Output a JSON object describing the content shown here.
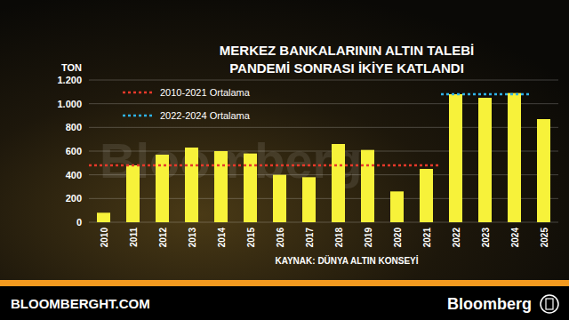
{
  "chart_data": {
    "type": "bar",
    "title": "MERKEZ BANKALARININ ALTIN TALEBİ",
    "subtitle": "PANDEMİ SONRASI İKİYE KATLANDI",
    "y_label": "TON",
    "source": "KAYNAK: DÜNYA ALTIN KONSEYİ",
    "footer_left": "BLOOMBERGHT.COM",
    "footer_right": "Bloomberg",
    "watermark": "Bloomberg",
    "categories": [
      "2010",
      "2011",
      "2012",
      "2013",
      "2014",
      "2015",
      "2016",
      "2017",
      "2018",
      "2019",
      "2020",
      "2021",
      "2022",
      "2023",
      "2024",
      "2025"
    ],
    "values": [
      80,
      480,
      570,
      630,
      600,
      580,
      400,
      380,
      660,
      610,
      260,
      450,
      1080,
      1050,
      1090,
      870
    ],
    "color": "#f7f23a",
    "ylim": [
      0,
      1200
    ],
    "yticks": [
      0,
      200,
      400,
      600,
      800,
      {
        "value": 1000,
        "label": "1.000"
      },
      {
        "value": 1200,
        "label": "1.200"
      }
    ],
    "grid": true,
    "reference_lines": [
      {
        "name": "2010-2021 Ortalama",
        "value": 480,
        "from": "2010",
        "to": "2021",
        "color": "#e8392a",
        "line_style": "dotted"
      },
      {
        "name": "2022-2024 Ortalama",
        "value": 1080,
        "from": "2022",
        "to": "2024",
        "color": "#2fb3e8",
        "line_style": "dotted"
      }
    ]
  }
}
